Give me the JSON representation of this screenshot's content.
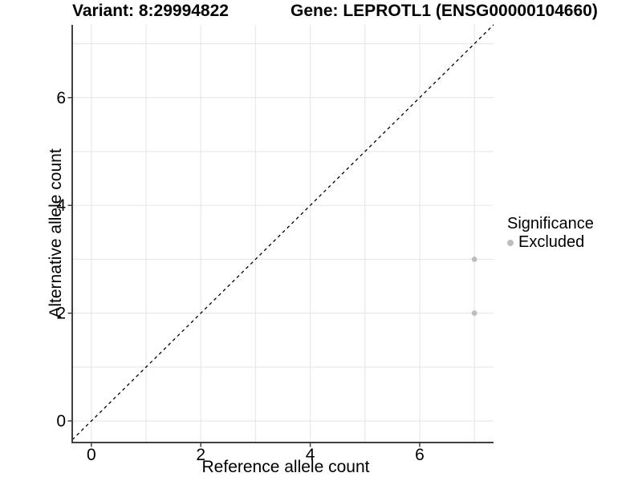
{
  "header": {
    "variant_title": "Variant: 8:29994822",
    "gene_title": "Gene: LEPROTL1 (ENSG00000104660)"
  },
  "chart_data": {
    "type": "scatter",
    "xlabel": "Reference allele count",
    "ylabel": "Alternative allele count",
    "x_ticks": [
      0,
      2,
      4,
      6
    ],
    "y_ticks": [
      0,
      2,
      4,
      6
    ],
    "grid_lines_x": [
      0,
      1,
      2,
      3,
      4,
      5,
      6,
      7
    ],
    "grid_lines_y": [
      0,
      1,
      2,
      3,
      4,
      5,
      6,
      7
    ],
    "xlim": [
      -0.35,
      7.35
    ],
    "ylim": [
      -0.4,
      7.35
    ],
    "points": [
      {
        "x": 7,
        "y": 3,
        "significance": "Excluded"
      },
      {
        "x": 7,
        "y": 2,
        "significance": "Excluded"
      }
    ],
    "reference_line": {
      "type": "identity",
      "slope": 1,
      "intercept": 0,
      "style": "dashed"
    },
    "legend": {
      "title": "Significance",
      "position": "right",
      "items": [
        {
          "label": "Excluded",
          "color": "#bdbdbd"
        }
      ]
    }
  },
  "colors": {
    "point": "#bdbdbd",
    "grid": "#e8e8e8",
    "axis": "#404040",
    "reference_line": "#000000",
    "text": "#000000",
    "background": "#ffffff"
  }
}
